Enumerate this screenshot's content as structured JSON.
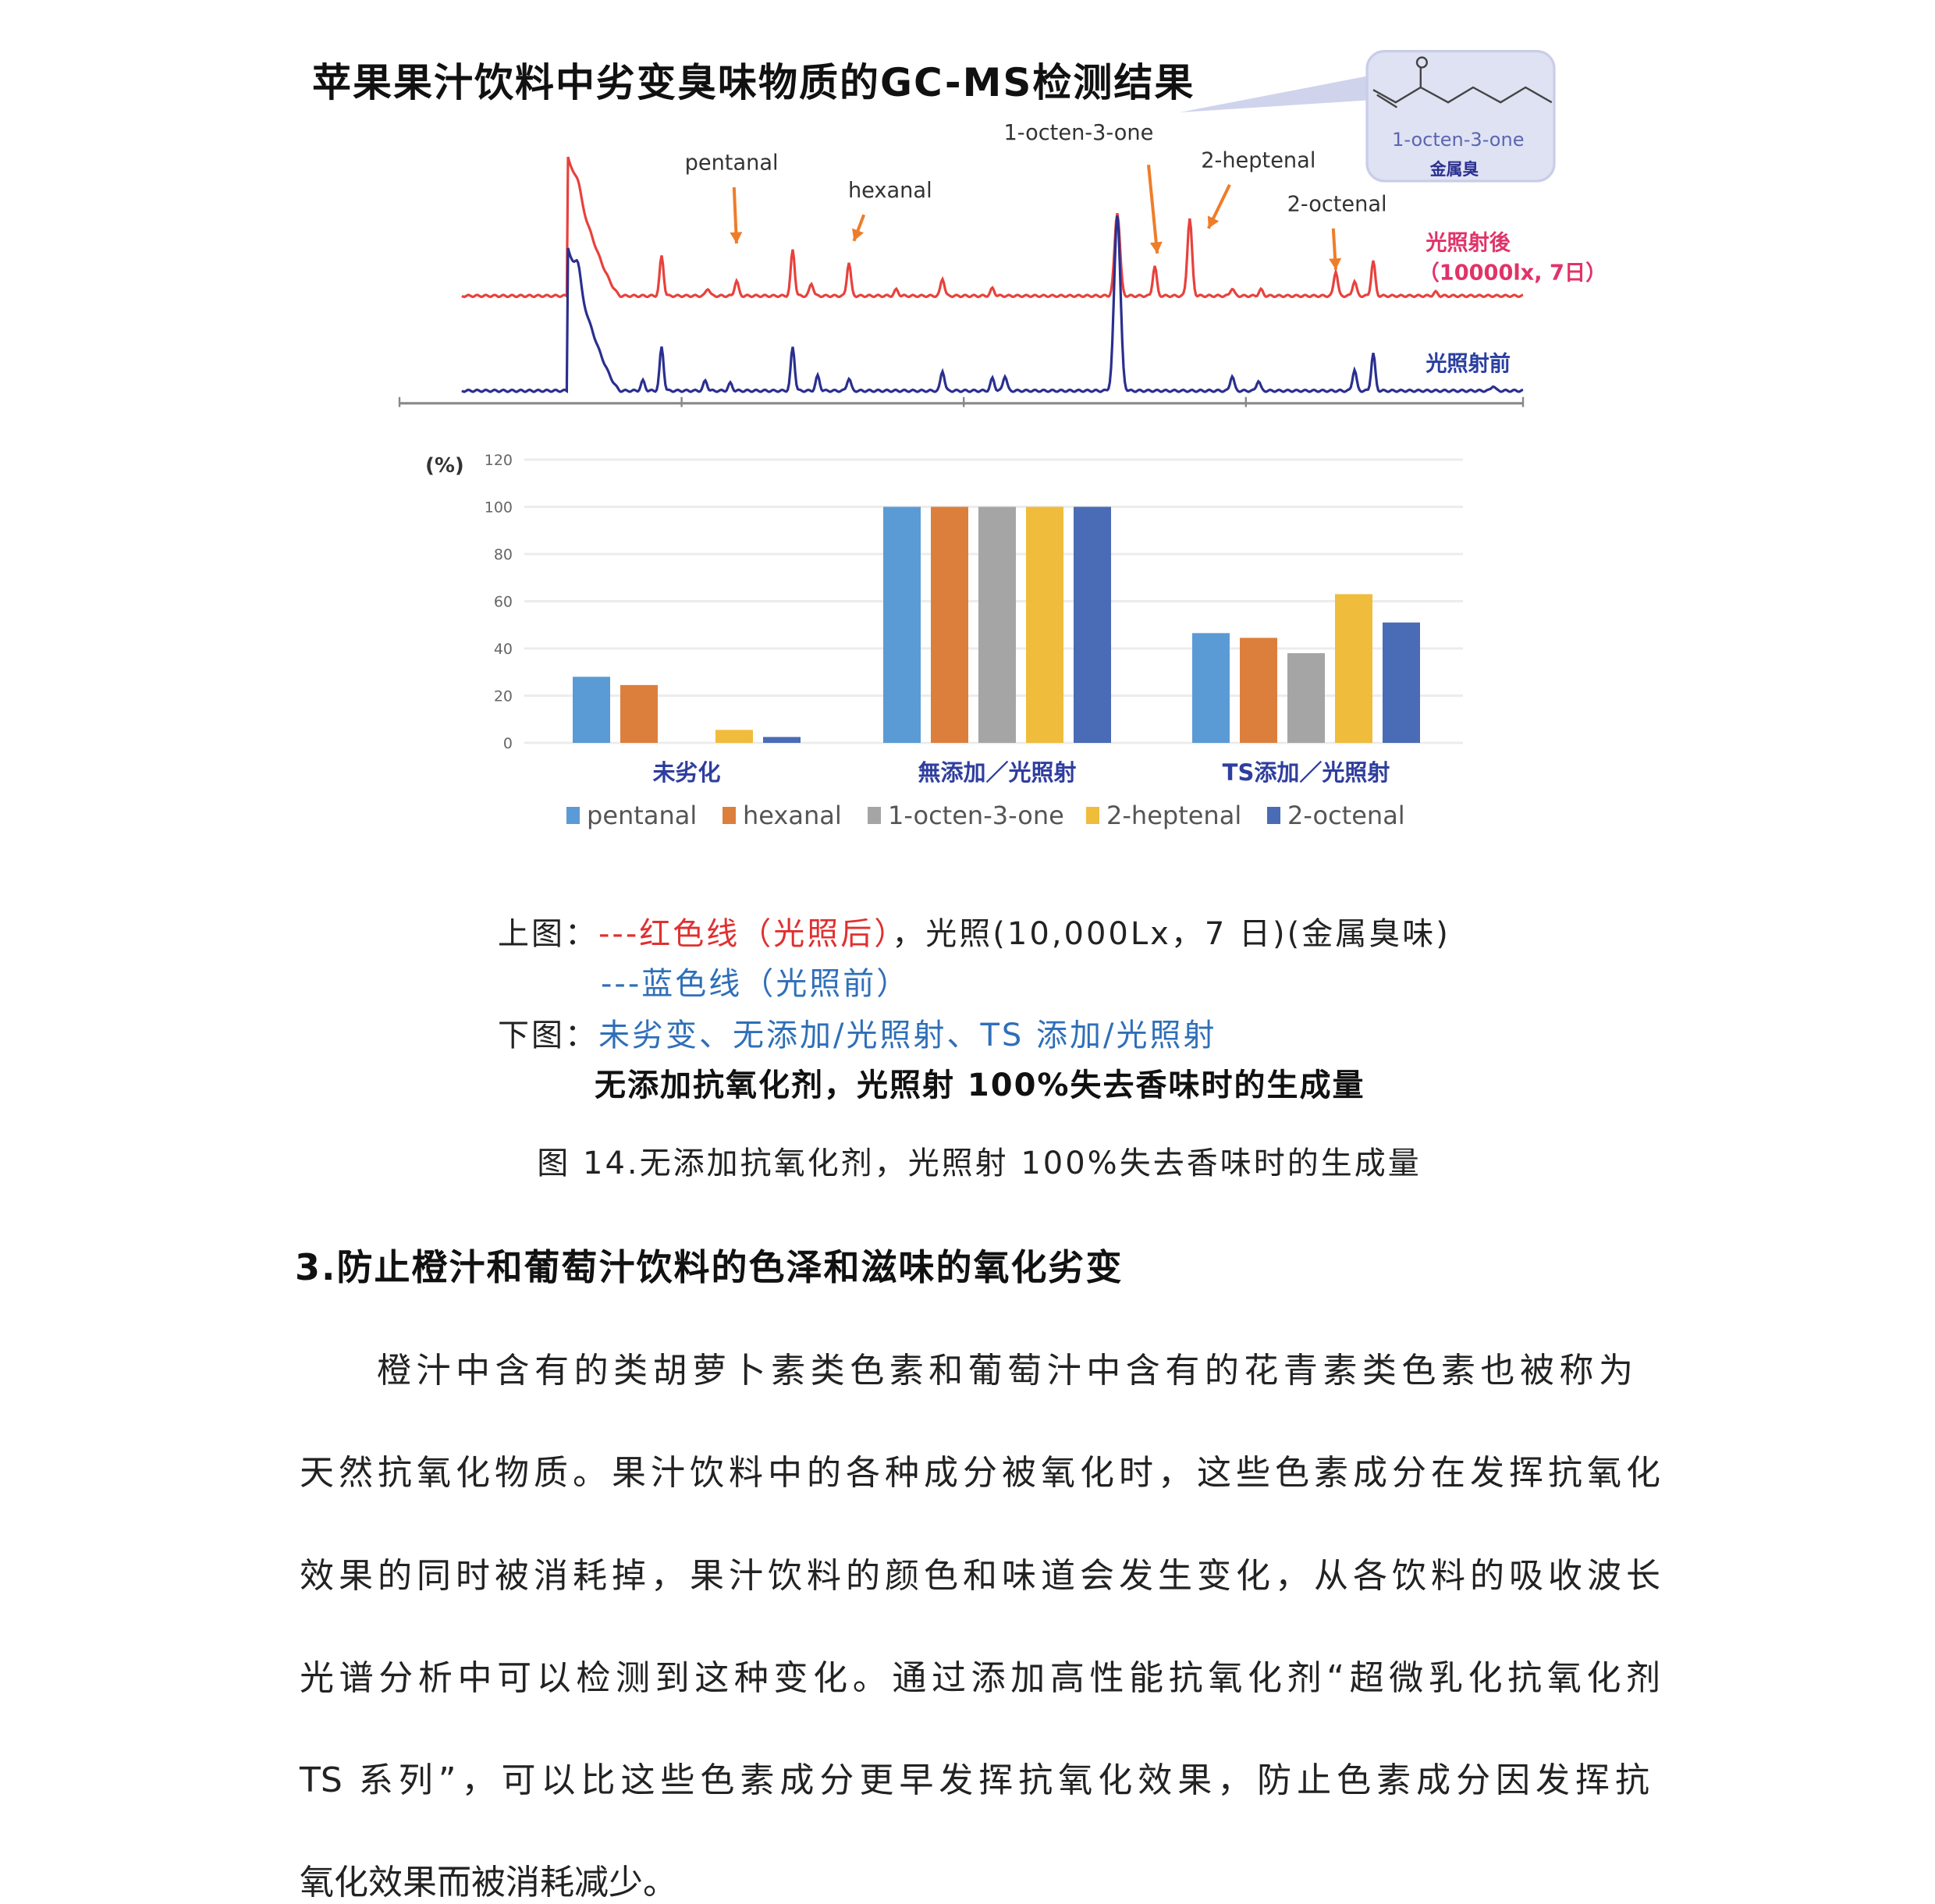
{
  "title": "苹果果汁饮料中劣变臭味物质的GC-MS检测结果",
  "chart_data": [
    {
      "type": "line",
      "title": "",
      "peak_labels": [
        "pentanal",
        "hexanal",
        "1-octen-3-one",
        "2-heptenal",
        "2-octenal"
      ],
      "series": [
        {
          "name": "光照射後",
          "color": "#e8413c"
        },
        {
          "name": "光照射前",
          "color": "#2a2f8f"
        }
      ],
      "series_note": "（10000lx, 7日）",
      "inset": {
        "compound": "1-octen-3-one",
        "note": "金属臭"
      },
      "arrow_color": "#ee7d2a"
    },
    {
      "type": "bar",
      "ylabel": "(%)",
      "ylim": [
        0,
        120
      ],
      "yticks": [
        0,
        20,
        40,
        60,
        80,
        100,
        120
      ],
      "categories": [
        "未劣化",
        "無添加／光照射",
        "TS添加／光照射"
      ],
      "series": [
        {
          "name": "pentanal",
          "color": "#5b9bd5",
          "values": [
            28,
            100,
            46.5
          ]
        },
        {
          "name": "hexanal",
          "color": "#dd7f3c",
          "values": [
            24.5,
            100,
            44.5
          ]
        },
        {
          "name": "1-octen-3-one",
          "color": "#a5a5a5",
          "values": [
            0,
            100,
            38
          ]
        },
        {
          "name": "2-heptenal",
          "color": "#f0bc3c",
          "values": [
            5.5,
            100,
            63
          ]
        },
        {
          "name": "2-octenal",
          "color": "#4a6bb5",
          "values": [
            2.5,
            100,
            51
          ]
        }
      ],
      "grid": true,
      "legend": "bottom"
    }
  ],
  "caption": {
    "upper_prefix": "上图：",
    "upper_red": "---红色线（光照后）",
    "upper_rest": "，光照(10,000Lx，7 日)(金属臭味)",
    "upper_blue": "---蓝色线（光照前）",
    "lower_prefix": "下图：",
    "lower_blue": "未劣变、无添加/光照射、TS 添加/光照射",
    "bold_line": "无添加抗氧化剂，光照射 100%失去香味时的生成量",
    "figure": "图 14.无添加抗氧化剂，光照射 100%失去香味时的生成量"
  },
  "heading": "3.防止橙汁和葡萄汁饮料的色泽和滋味的氧化劣变",
  "paragraph_lines": [
    "橙汁中含有的类胡萝卜素类色素和葡萄汁中含有的花青素类色素也被称为",
    "天然抗氧化物质。果汁饮料中的各种成分被氧化时，这些色素成分在发挥抗氧化",
    "效果的同时被消耗掉，果汁饮料的颜色和味道会发生变化，从各饮料的吸收波长",
    "光谱分析中可以检测到这种变化。通过添加高性能抗氧化剂“超微乳化抗氧化剂",
    "TS 系列”，可以比这些色素成分更早发挥抗氧化效果，防止色素成分因发挥抗",
    "氧化效果而被消耗减少。"
  ]
}
